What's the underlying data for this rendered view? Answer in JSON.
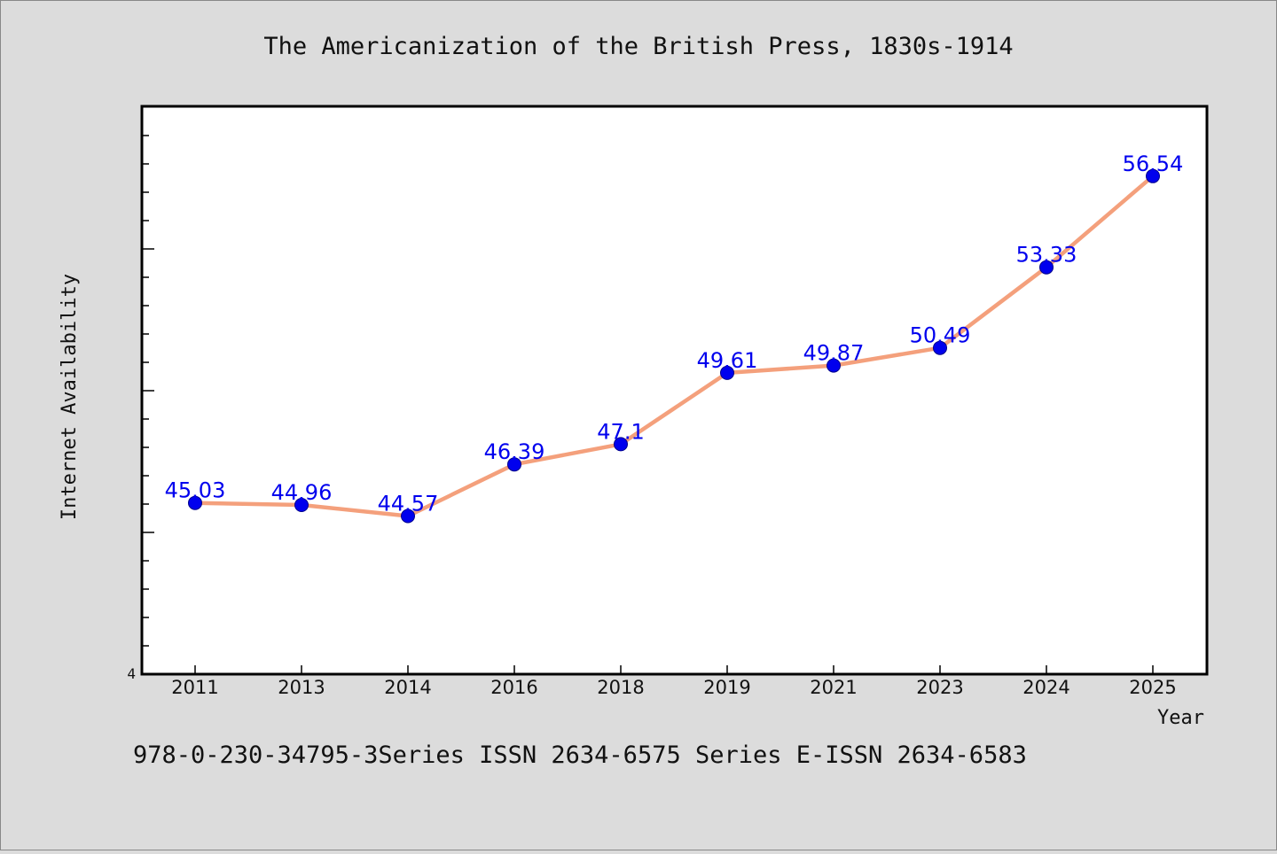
{
  "chart_data": {
    "type": "line",
    "title": "The Americanization of the British Press, 1830s-1914",
    "xlabel": "Year",
    "ylabel": "Internet Availability",
    "footer": "978-0-230-34795-3Series ISSN 2634-6575 Series E-ISSN 2634-6583",
    "categories": [
      "2011",
      "2013",
      "2014",
      "2016",
      "2018",
      "2019",
      "2021",
      "2023",
      "2024",
      "2025"
    ],
    "series": [
      {
        "values": [
          45.03,
          44.96,
          44.57,
          46.39,
          47.1,
          49.61,
          49.87,
          50.49,
          53.33,
          56.54
        ],
        "labels": [
          "45.03",
          "44.96",
          "44.57",
          "46.39",
          "47.1",
          "49.61",
          "49.87",
          "50.49",
          "53.33",
          "56.54"
        ]
      }
    ],
    "y_tick_labels": [
      "4"
    ],
    "ylim": [
      39.0,
      59.0
    ],
    "grid": false,
    "legend": "none",
    "colors": {
      "line": "#f4a07c",
      "marker": "#0000ee",
      "data_label": "#0000ee",
      "background": "#dcdcdc",
      "plot_background": "#ffffff"
    }
  }
}
